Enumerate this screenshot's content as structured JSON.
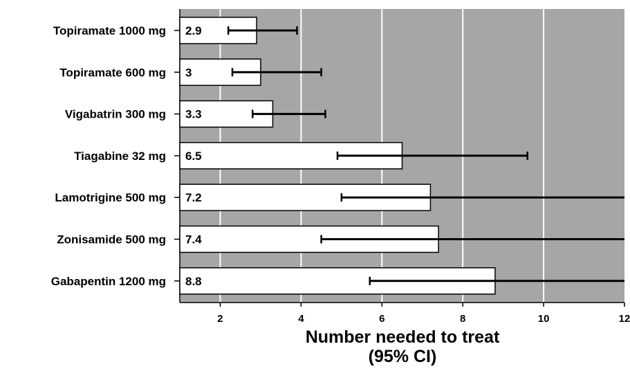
{
  "chart_data": {
    "type": "bar",
    "orientation": "horizontal",
    "categories": [
      "Topiramate 1000 mg",
      "Topiramate 600 mg",
      "Vigabatrin 300 mg",
      "Tiagabine 32 mg",
      "Lamotrigine 500 mg",
      "Zonisamide 500 mg",
      "Gabapentin 1200 mg"
    ],
    "values": [
      2.9,
      3,
      3.3,
      6.5,
      7.2,
      7.4,
      8.8
    ],
    "value_labels": [
      "2.9",
      "3",
      "3.3",
      "6.5",
      "7.2",
      "7.4",
      "8.8"
    ],
    "ci_lower": [
      2.2,
      2.3,
      2.8,
      4.9,
      5.0,
      4.5,
      5.7
    ],
    "ci_upper": [
      3.9,
      4.5,
      4.6,
      9.6,
      12,
      12,
      12
    ],
    "ci_extends_beyond_axis": [
      false,
      false,
      false,
      false,
      true,
      true,
      true
    ],
    "xlim": [
      1,
      12
    ],
    "xticks": [
      2,
      4,
      6,
      8,
      10,
      12
    ],
    "xtick_labels": [
      "2",
      "4",
      "6",
      "8",
      "10",
      "12"
    ],
    "xlabel_line1": "Number needed to treat",
    "xlabel_line2": "(95% CI)",
    "ylabel": "",
    "title": "",
    "grid": "vertical",
    "colors": {
      "plot_background": "#a6a6a6",
      "bar_fill": "#ffffff",
      "bar_stroke": "#000000",
      "grid_line": "#ffffff",
      "error_bar": "#000000"
    }
  }
}
